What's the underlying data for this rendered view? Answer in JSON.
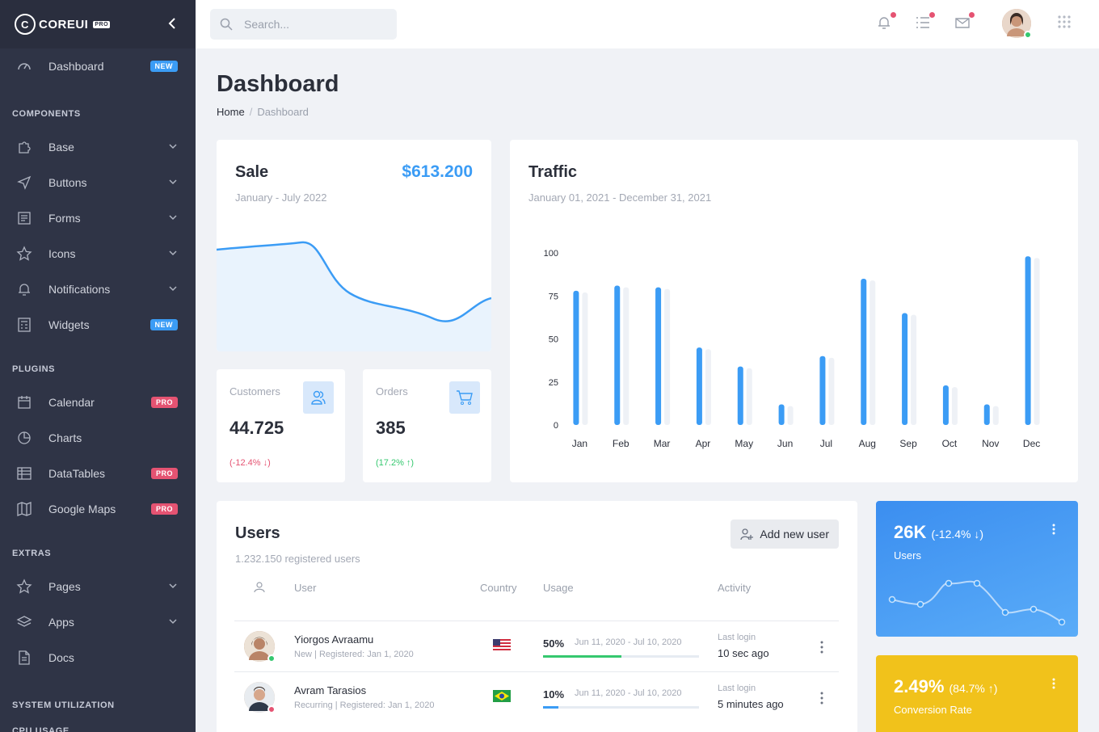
{
  "brand": {
    "name": "COREUI",
    "tag": "PRO"
  },
  "sidebar": {
    "dashboard": {
      "label": "Dashboard",
      "badge": "NEW"
    },
    "sections": [
      {
        "title": "COMPONENTS",
        "items": [
          {
            "label": "Base",
            "icon": "puzzle-icon"
          },
          {
            "label": "Buttons",
            "icon": "cursor-icon"
          },
          {
            "label": "Forms",
            "icon": "notes-icon"
          },
          {
            "label": "Icons",
            "icon": "star-icon"
          },
          {
            "label": "Notifications",
            "icon": "bell-icon"
          },
          {
            "label": "Widgets",
            "icon": "calculator-icon",
            "badge": "NEW"
          }
        ]
      },
      {
        "title": "PLUGINS",
        "items": [
          {
            "label": "Calendar",
            "icon": "calendar-icon",
            "badge": "PRO"
          },
          {
            "label": "Charts",
            "icon": "chart-pie-icon"
          },
          {
            "label": "DataTables",
            "icon": "spreadsheet-icon",
            "badge": "PRO"
          },
          {
            "label": "Google Maps",
            "icon": "map-icon",
            "badge": "PRO"
          }
        ]
      },
      {
        "title": "EXTRAS",
        "items": [
          {
            "label": "Pages",
            "icon": "star-icon"
          },
          {
            "label": "Apps",
            "icon": "layers-icon"
          },
          {
            "label": "Docs",
            "icon": "description-icon"
          }
        ]
      }
    ],
    "system_title": "SYSTEM UTILIZATION",
    "cpu_title": "CPU USAGE"
  },
  "header": {
    "search_placeholder": "Search..."
  },
  "page": {
    "title": "Dashboard",
    "breadcrumb_home": "Home",
    "breadcrumb_current": "Dashboard"
  },
  "sale": {
    "title": "Sale",
    "amount": "$613.200",
    "period": "January - July 2022"
  },
  "customers": {
    "label": "Customers",
    "value": "44.725",
    "delta": "(-12.4% ↓)"
  },
  "orders": {
    "label": "Orders",
    "value": "385",
    "delta": "(17.2% ↑)"
  },
  "traffic": {
    "title": "Traffic",
    "period": "January 01, 2021 - December 31, 2021"
  },
  "chart_data": {
    "type": "bar",
    "title": "Traffic",
    "categories": [
      "Jan",
      "Feb",
      "Mar",
      "Apr",
      "May",
      "Jun",
      "Jul",
      "Aug",
      "Sep",
      "Oct",
      "Nov",
      "Dec"
    ],
    "series": [
      {
        "values": [
          78,
          81,
          80,
          45,
          34,
          12,
          40,
          85,
          65,
          23,
          12,
          98
        ]
      },
      {
        "values": [
          77,
          80,
          79,
          44,
          33,
          11,
          39,
          84,
          64,
          22,
          11,
          97
        ]
      }
    ],
    "yticks": [
      "100",
      "75",
      "50",
      "25",
      "0"
    ],
    "ylim": [
      0,
      100
    ],
    "colors": [
      "#3b9cf5",
      "#eef1f6"
    ]
  },
  "users": {
    "title": "Users",
    "subtitle": "1.232.150 registered users",
    "add_button": "Add new user",
    "columns": {
      "user": "User",
      "country": "Country",
      "usage": "Usage",
      "activity": "Activity"
    },
    "rows": [
      {
        "name": "Yiorgos Avraamu",
        "meta": "New | Registered: Jan 1, 2020",
        "country": "us-flag-icon",
        "usage": "50%",
        "usage_value": 0.5,
        "usage_color": "#35c86f",
        "range": "Jun 11, 2020 - Jul 10, 2020",
        "activity_label": "Last login",
        "activity": "10 sec ago",
        "status_color": "#35c86f"
      },
      {
        "name": "Avram Tarasios",
        "meta": "Recurring | Registered: Jan 1, 2020",
        "country": "br-flag-icon",
        "usage": "10%",
        "usage_value": 0.1,
        "usage_color": "#3b9cf5",
        "range": "Jun 11, 2020 - Jul 10, 2020",
        "activity_label": "Last login",
        "activity": "5 minutes ago",
        "status_color": "#e55372"
      }
    ]
  },
  "widget_users": {
    "value": "26K",
    "delta": "(-12.4% ↓)",
    "label": "Users",
    "color": "#3b9cf5"
  },
  "widget_conversion": {
    "value": "2.49%",
    "delta": "(84.7% ↑)",
    "label": "Conversion Rate",
    "color": "#f5c518"
  }
}
